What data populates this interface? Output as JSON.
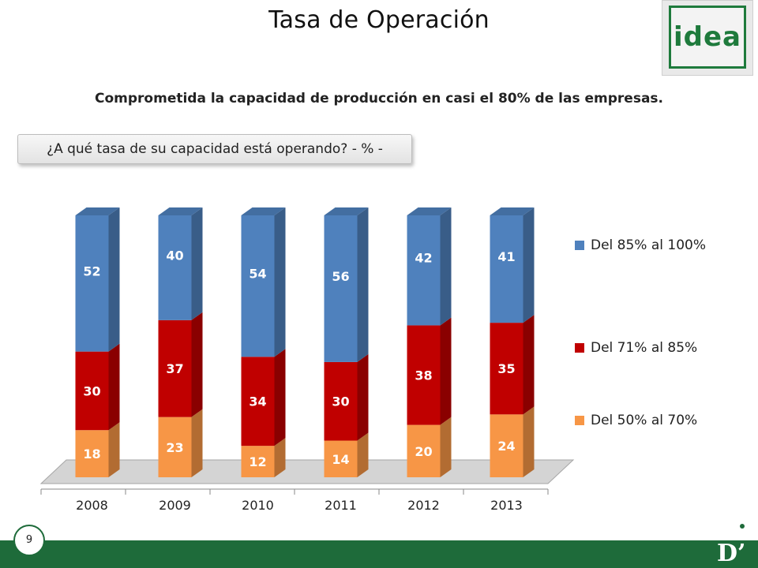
{
  "page": {
    "title": "Tasa de Operación",
    "logo_text": "idea",
    "subtitle": "Comprometida la capacidad de producción en casi el 80% de las empresas.",
    "question": "¿A qué tasa de su capacidad está operando? - % -",
    "page_number": "9",
    "corner_mark": "D’"
  },
  "colors": {
    "blue": "#4f81bd",
    "red": "#c00000",
    "orange": "#f79646",
    "footer_green": "#1e6b3a"
  },
  "chart_data": {
    "type": "bar",
    "stacked": true,
    "three_d": true,
    "categories": [
      "2008",
      "2009",
      "2010",
      "2011",
      "2012",
      "2013"
    ],
    "series": [
      {
        "name": "Del 50% al 70%",
        "color": "#f79646",
        "values": [
          18,
          23,
          12,
          14,
          20,
          24
        ],
        "labels": [
          "18",
          "23",
          "12",
          "14",
          "20",
          "24"
        ]
      },
      {
        "name": "Del 71% al 85%",
        "color": "#c00000",
        "values": [
          30,
          37,
          34,
          30,
          38,
          35
        ],
        "labels": [
          "30",
          "37",
          "34",
          "30",
          "38",
          "35"
        ]
      },
      {
        "name": "Del 85% al 100%",
        "color": "#4f81bd",
        "values": [
          52,
          40,
          54,
          56,
          42,
          41
        ],
        "labels": [
          "52",
          "40",
          "54",
          "56",
          "42",
          "41"
        ]
      }
    ],
    "legend": [
      {
        "label": "Del 85% al 100%",
        "color": "#4f81bd"
      },
      {
        "label": "Del 71% al 85%",
        "color": "#c00000"
      },
      {
        "label": "Del 50% al 70%",
        "color": "#f79646"
      }
    ],
    "legend_position": "right",
    "ylim": [
      0,
      100
    ],
    "grid": false
  }
}
